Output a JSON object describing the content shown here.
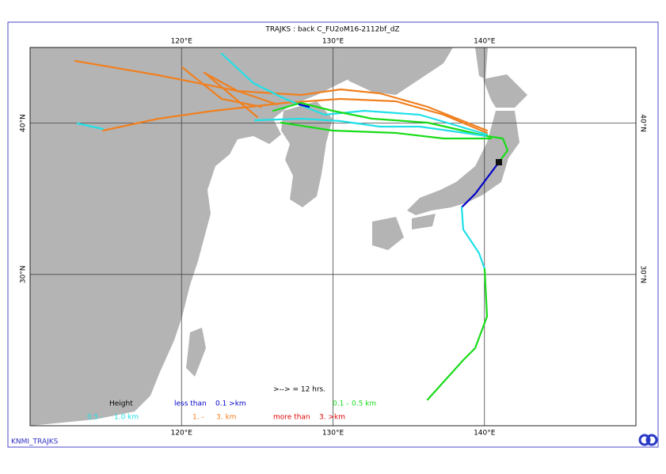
{
  "title": "TRAJKS : back C_FU2oM16-2112bf_dZ",
  "footer": "KNMI_TRAJKS",
  "map": {
    "lonlim": [
      110,
      150
    ],
    "latlim": [
      20,
      45
    ],
    "lonticks": [
      {
        "value": 120,
        "label": "120°E"
      },
      {
        "value": 130,
        "label": "130°E"
      },
      {
        "value": 140,
        "label": "140°E"
      }
    ],
    "latticks": [
      {
        "value": 40,
        "label": "40°N"
      },
      {
        "value": 30,
        "label": "30°N"
      }
    ]
  },
  "legend": {
    "title": "Height",
    "arrow_note": ">--> = 12 hrs.",
    "items": [
      {
        "from": "less than",
        "to": "0.1 >km",
        "color": "#0000c8"
      },
      {
        "from": "0.1 -",
        "to": "0.5 km",
        "color": "#18dc18"
      },
      {
        "from": "0.5 -",
        "to": "1.0 km",
        "color": "#20e0e8"
      },
      {
        "from": "1. -",
        "to": "3. km",
        "color": "#f08020"
      },
      {
        "from": "more than",
        "to": "3. >km",
        "color": "#e00000"
      }
    ]
  }
}
